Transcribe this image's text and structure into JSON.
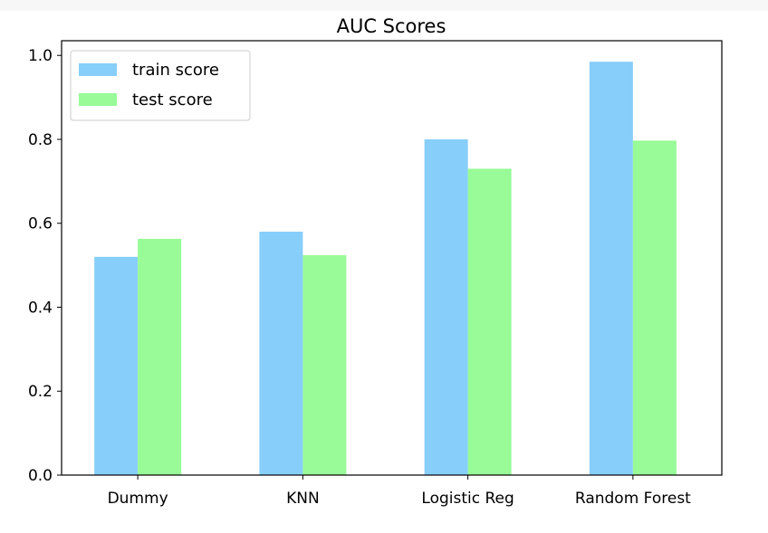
{
  "chart_data": {
    "type": "bar",
    "title": "AUC Scores",
    "xlabel": "",
    "ylabel": "",
    "categories": [
      "Dummy",
      "KNN",
      "Logistic Reg",
      "Random Forest"
    ],
    "series": [
      {
        "name": "train score",
        "color": "#87CEFA",
        "values": [
          0.52,
          0.58,
          0.8,
          0.985
        ]
      },
      {
        "name": "test score",
        "color": "#98FB98",
        "values": [
          0.563,
          0.524,
          0.73,
          0.797
        ]
      }
    ],
    "ylim": [
      0,
      1.035
    ],
    "yticks": [
      "0.0",
      "0.2",
      "0.4",
      "0.6",
      "0.8",
      "1.0"
    ],
    "grid": false,
    "legend_position": "top-left"
  }
}
